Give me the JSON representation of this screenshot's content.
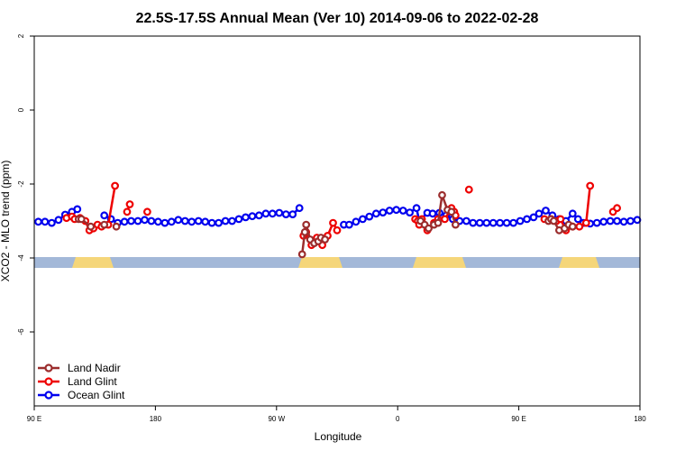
{
  "chart_data": {
    "type": "line",
    "title": "22.5S-17.5S Annual Mean (Ver 10)   2014-09-06 to 2022-02-28",
    "xlabel": "Longitude",
    "ylabel": "XCO2 - MLO trend (ppm)",
    "xlim": [
      90,
      540
    ],
    "ylim": [
      -8,
      2
    ],
    "xticks": [
      {
        "value": 90,
        "label": "90 E"
      },
      {
        "value": 180,
        "label": "180"
      },
      {
        "value": 270,
        "label": "90 W"
      },
      {
        "value": 360,
        "label": "0"
      },
      {
        "value": 450,
        "label": "90 E"
      },
      {
        "value": 540,
        "label": "180"
      }
    ],
    "yticks": [
      {
        "value": 2,
        "label": "2"
      },
      {
        "value": 0,
        "label": "0"
      },
      {
        "value": -2,
        "label": "-2"
      },
      {
        "value": -4,
        "label": "-4"
      },
      {
        "value": -6,
        "label": "-6"
      }
    ],
    "legend_position": "bottom-left",
    "series": [
      {
        "name": "Land Nadir",
        "color": "#9b2d2d",
        "points": [
          [
            123,
            -2.95
          ],
          [
            125,
            -2.95
          ],
          [
            132,
            -3.15
          ],
          [
            142,
            -3.1
          ],
          [
            151,
            -3.15
          ],
          [
            289,
            -3.9
          ],
          [
            291,
            -3.3
          ],
          [
            292,
            -3.1
          ],
          [
            295,
            -3.5
          ],
          [
            298,
            -3.6
          ],
          [
            301,
            -3.55
          ],
          [
            303,
            -3.45
          ],
          [
            306,
            -3.5
          ],
          [
            377,
            -3.0
          ],
          [
            380,
            -3.1
          ],
          [
            383,
            -3.2
          ],
          [
            387,
            -3.1
          ],
          [
            390,
            -3.05
          ],
          [
            393,
            -2.3
          ],
          [
            397,
            -2.7
          ],
          [
            400,
            -2.75
          ],
          [
            403,
            -3.1
          ],
          [
            472,
            -3.0
          ],
          [
            474,
            -2.95
          ],
          [
            476,
            -3.0
          ],
          [
            480,
            -3.25
          ],
          [
            484,
            -3.2
          ],
          [
            487,
            -3.1
          ],
          [
            490,
            -3.15
          ]
        ]
      },
      {
        "name": "Land Glint",
        "color": "#ee0000",
        "points": [
          [
            114,
            -2.92
          ],
          [
            118,
            -2.88
          ],
          [
            120,
            -2.95
          ],
          [
            124,
            -2.92
          ],
          [
            128,
            -3.0
          ],
          [
            131,
            -3.25
          ],
          [
            134,
            -3.2
          ],
          [
            137,
            -3.1
          ],
          [
            140,
            -3.15
          ],
          [
            145,
            -3.1
          ],
          [
            150,
            -2.05
          ],
          [
            159,
            -2.75
          ],
          [
            161,
            -2.55
          ],
          [
            174,
            -2.75
          ],
          [
            290,
            -3.4
          ],
          [
            292,
            -3.3
          ],
          [
            296,
            -3.65
          ],
          [
            300,
            -3.45
          ],
          [
            304,
            -3.65
          ],
          [
            308,
            -3.4
          ],
          [
            312,
            -3.05
          ],
          [
            315,
            -3.25
          ],
          [
            373,
            -2.95
          ],
          [
            375,
            -3.0
          ],
          [
            376,
            -3.1
          ],
          [
            378,
            -2.95
          ],
          [
            382,
            -3.25
          ],
          [
            387,
            -3.05
          ],
          [
            390,
            -2.95
          ],
          [
            395,
            -2.95
          ],
          [
            400,
            -2.65
          ],
          [
            402,
            -2.75
          ],
          [
            403,
            -2.85
          ],
          [
            413,
            -2.15
          ],
          [
            469,
            -2.95
          ],
          [
            474,
            -2.95
          ],
          [
            478,
            -3.0
          ],
          [
            481,
            -2.95
          ],
          [
            485,
            -3.25
          ],
          [
            490,
            -3.15
          ],
          [
            495,
            -3.15
          ],
          [
            500,
            -3.05
          ],
          [
            503,
            -2.05
          ],
          [
            520,
            -2.75
          ],
          [
            523,
            -2.65
          ]
        ]
      },
      {
        "name": "Ocean Glint",
        "color": "#0000ee",
        "points": [
          [
            93,
            -3.02
          ],
          [
            98,
            -3.02
          ],
          [
            103,
            -3.05
          ],
          [
            108,
            -2.97
          ],
          [
            113,
            -2.83
          ],
          [
            118,
            -2.75
          ],
          [
            122,
            -2.68
          ],
          [
            142,
            -2.85
          ],
          [
            147,
            -2.95
          ],
          [
            152,
            -3.05
          ],
          [
            157,
            -3.02
          ],
          [
            162,
            -3.0
          ],
          [
            167,
            -3.0
          ],
          [
            172,
            -2.97
          ],
          [
            177,
            -3.0
          ],
          [
            182,
            -3.02
          ],
          [
            187,
            -3.05
          ],
          [
            192,
            -3.02
          ],
          [
            197,
            -2.97
          ],
          [
            202,
            -3.0
          ],
          [
            207,
            -3.02
          ],
          [
            212,
            -3.0
          ],
          [
            217,
            -3.02
          ],
          [
            222,
            -3.05
          ],
          [
            227,
            -3.05
          ],
          [
            232,
            -3.0
          ],
          [
            237,
            -3.0
          ],
          [
            242,
            -2.95
          ],
          [
            247,
            -2.9
          ],
          [
            252,
            -2.87
          ],
          [
            257,
            -2.85
          ],
          [
            262,
            -2.8
          ],
          [
            267,
            -2.8
          ],
          [
            272,
            -2.78
          ],
          [
            277,
            -2.82
          ],
          [
            282,
            -2.82
          ],
          [
            287,
            -2.65
          ],
          [
            320,
            -3.1
          ],
          [
            324,
            -3.1
          ],
          [
            329,
            -3.02
          ],
          [
            334,
            -2.95
          ],
          [
            339,
            -2.88
          ],
          [
            344,
            -2.8
          ],
          [
            349,
            -2.77
          ],
          [
            354,
            -2.72
          ],
          [
            359,
            -2.7
          ],
          [
            364,
            -2.72
          ],
          [
            369,
            -2.77
          ],
          [
            374,
            -2.65
          ],
          [
            376,
            -3.0
          ],
          [
            382,
            -2.78
          ],
          [
            386,
            -2.8
          ],
          [
            391,
            -2.78
          ],
          [
            396,
            -2.85
          ],
          [
            401,
            -2.95
          ],
          [
            406,
            -3.0
          ],
          [
            411,
            -3.0
          ],
          [
            416,
            -3.05
          ],
          [
            421,
            -3.05
          ],
          [
            426,
            -3.05
          ],
          [
            431,
            -3.05
          ],
          [
            436,
            -3.05
          ],
          [
            441,
            -3.05
          ],
          [
            446,
            -3.05
          ],
          [
            451,
            -3.0
          ],
          [
            456,
            -2.95
          ],
          [
            461,
            -2.9
          ],
          [
            465,
            -2.8
          ],
          [
            470,
            -2.72
          ],
          [
            475,
            -2.85
          ],
          [
            480,
            -2.95
          ],
          [
            485,
            -3.0
          ],
          [
            490,
            -2.8
          ],
          [
            494,
            -2.95
          ],
          [
            498,
            -3.05
          ],
          [
            503,
            -3.07
          ],
          [
            508,
            -3.05
          ],
          [
            513,
            -3.02
          ],
          [
            518,
            -3.0
          ],
          [
            523,
            -3.0
          ],
          [
            528,
            -3.02
          ],
          [
            533,
            -3.0
          ],
          [
            538,
            -2.97
          ]
        ]
      }
    ]
  }
}
